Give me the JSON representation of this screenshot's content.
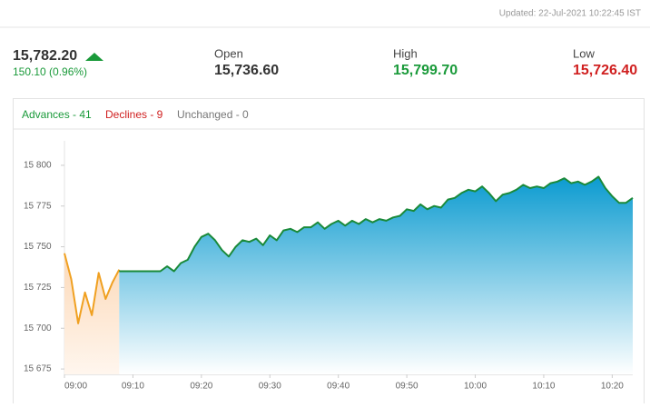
{
  "updated": "Updated: 22-Jul-2021 10:22:45 IST",
  "quote": {
    "last": "15,782.20",
    "change": "150.10 (0.96%)",
    "open_label": "Open",
    "open": "15,736.60",
    "high_label": "High",
    "high": "15,799.70",
    "low_label": "Low",
    "low": "15,726.40"
  },
  "breadth": {
    "advances": "Advances - 41",
    "declines": "Declines - 9",
    "unchanged": "Unchanged - 0"
  },
  "chart_data": {
    "type": "area",
    "xlim": [
      "09:00",
      "10:23"
    ],
    "xticks": [
      "09:00",
      "09:10",
      "09:20",
      "09:30",
      "09:40",
      "09:50",
      "10:00",
      "10:10",
      "10:20"
    ],
    "ylim": [
      15671.7,
      15815
    ],
    "yticks": [
      {
        "value": 15675,
        "label": "15 675"
      },
      {
        "value": 15700,
        "label": "15 700"
      },
      {
        "value": 15725,
        "label": "15 725"
      },
      {
        "value": 15750,
        "label": "15 750"
      },
      {
        "value": 15775,
        "label": "15 775"
      },
      {
        "value": 15800,
        "label": "15 800"
      }
    ],
    "grid": false,
    "series": [
      {
        "color": "#f0a020",
        "fill": "#fde3c8",
        "x": [
          "09:00",
          "09:01",
          "09:02",
          "09:03",
          "09:04",
          "09:05",
          "09:06",
          "09:07",
          "09:08"
        ],
        "values": [
          15746,
          15730,
          15703,
          15722,
          15708,
          15734,
          15718,
          15728,
          15736
        ]
      },
      {
        "color": "#1a8a3a",
        "fill": "#10a0d0",
        "x": [
          "09:08",
          "09:09",
          "09:10",
          "09:11",
          "09:12",
          "09:13",
          "09:14",
          "09:15",
          "09:16",
          "09:17",
          "09:18",
          "09:19",
          "09:20",
          "09:21",
          "09:22",
          "09:23",
          "09:24",
          "09:25",
          "09:26",
          "09:27",
          "09:28",
          "09:29",
          "09:30",
          "09:31",
          "09:32",
          "09:33",
          "09:34",
          "09:35",
          "09:36",
          "09:37",
          "09:38",
          "09:39",
          "09:40",
          "09:41",
          "09:42",
          "09:43",
          "09:44",
          "09:45",
          "09:46",
          "09:47",
          "09:48",
          "09:49",
          "09:50",
          "09:51",
          "09:52",
          "09:53",
          "09:54",
          "09:55",
          "09:56",
          "09:57",
          "09:58",
          "09:59",
          "10:00",
          "10:01",
          "10:02",
          "10:03",
          "10:04",
          "10:05",
          "10:06",
          "10:07",
          "10:08",
          "10:09",
          "10:10",
          "10:11",
          "10:12",
          "10:13",
          "10:14",
          "10:15",
          "10:16",
          "10:17",
          "10:18",
          "10:19",
          "10:20",
          "10:21",
          "10:22",
          "10:23"
        ],
        "values": [
          15735,
          15735,
          15735,
          15735,
          15735,
          15735,
          15735,
          15738,
          15735,
          15740,
          15742,
          15750,
          15756,
          15758,
          15754,
          15748,
          15744,
          15750,
          15754,
          15753,
          15755,
          15751,
          15757,
          15754,
          15760,
          15761,
          15759,
          15762,
          15762,
          15765,
          15761,
          15764,
          15766,
          15763,
          15766,
          15764,
          15767,
          15765,
          15767,
          15766,
          15768,
          15769,
          15773,
          15772,
          15776,
          15773,
          15775,
          15774,
          15779,
          15780,
          15783,
          15785,
          15784,
          15787,
          15783,
          15778,
          15782,
          15783,
          15785,
          15788,
          15786,
          15787,
          15786,
          15789,
          15790,
          15792,
          15789,
          15790,
          15788,
          15790,
          15793,
          15786,
          15781,
          15777,
          15777,
          15780
        ]
      }
    ]
  }
}
